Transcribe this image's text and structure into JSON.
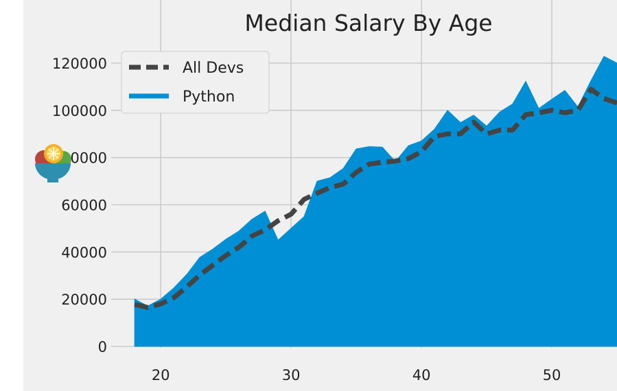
{
  "chart_data": {
    "type": "area",
    "title": "Median Salary By Age",
    "xlabel": "",
    "ylabel": "",
    "x": [
      18,
      19,
      20,
      21,
      22,
      23,
      24,
      25,
      26,
      27,
      28,
      29,
      30,
      31,
      32,
      33,
      34,
      35,
      36,
      37,
      38,
      39,
      40,
      41,
      42,
      43,
      44,
      45,
      46,
      47,
      48,
      49,
      50,
      51,
      52,
      53,
      54,
      55
    ],
    "xticks": [
      "20",
      "30",
      "40",
      "50"
    ],
    "yticks": [
      "0",
      "20000",
      "40000",
      "60000",
      "80000",
      "100000",
      "120000"
    ],
    "xlim": [
      16.2,
      55
    ],
    "ylim": [
      0,
      125000
    ],
    "grid": true,
    "legend_position": "top-left",
    "series": [
      {
        "name": "All Devs",
        "style": "dashed-line",
        "color": "#444444",
        "values": [
          17784,
          16500,
          18012,
          20628,
          25206,
          30252,
          34368,
          38496,
          42000,
          46752,
          49320,
          53200,
          56000,
          62316,
          64928,
          67317,
          68748,
          73752,
          77232,
          78000,
          78508,
          79536,
          82488,
          88935,
          90000,
          90056,
          95000,
          90000,
          91633,
          91660,
          98150,
          98964,
          100000,
          98988,
          100000,
          108923,
          105000,
          103117
        ]
      },
      {
        "name": "Python",
        "style": "filled-area",
        "color": "#008fd5",
        "values": [
          20046,
          17100,
          20000,
          24744,
          30500,
          37732,
          41247,
          45372,
          48876,
          53850,
          57287,
          45000,
          50000,
          55000,
          70000,
          71496,
          75370,
          83640,
          84666,
          84392,
          78254,
          85000,
          87038,
          91991,
          100000,
          94796,
          97962,
          93302,
          99240,
          102736,
          112285,
          100771,
          104708,
          108423,
          101407,
          112542,
          122870,
          120000
        ]
      }
    ]
  },
  "colors": {
    "background": "#f0f0f0",
    "grid": "#cbcbcb",
    "python_fill": "#008fd5",
    "all_devs_line": "#444444"
  },
  "overlay": {
    "icon": "salad-bowl-icon"
  }
}
